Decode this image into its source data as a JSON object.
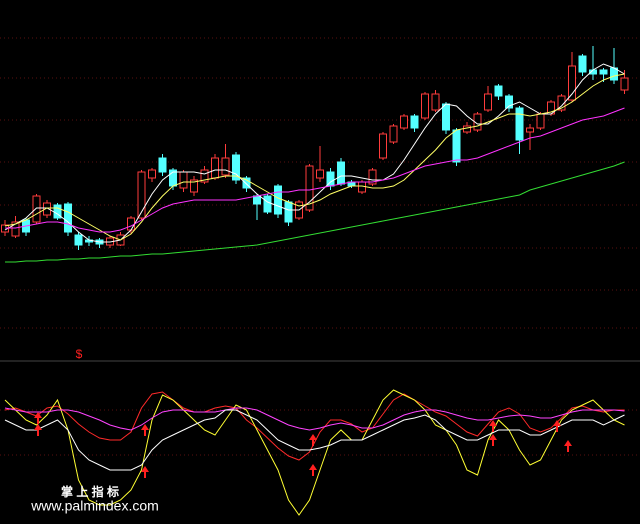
{
  "chart_data": [
    {
      "type": "candlestick",
      "ylim": [
        0,
        300
      ],
      "up_color": "#ff3c3c",
      "down_color": "#54ffff",
      "open": [
        68,
        64,
        80,
        78,
        85,
        95,
        96,
        65,
        60,
        60,
        55,
        55,
        70,
        82,
        122,
        142,
        130,
        112,
        108,
        118,
        122,
        125,
        145,
        122,
        104,
        104,
        114,
        98,
        82,
        90,
        122,
        128,
        138,
        118,
        108,
        116,
        142,
        158,
        172,
        184,
        182,
        190,
        196,
        170,
        168,
        170,
        190,
        214,
        204,
        192,
        168,
        172,
        186,
        190,
        200,
        244,
        230,
        230,
        232,
        210
      ],
      "high": [
        80,
        84,
        82,
        106,
        100,
        97,
        98,
        68,
        64,
        62,
        64,
        68,
        84,
        130,
        132,
        146,
        132,
        130,
        124,
        134,
        146,
        156,
        148,
        124,
        106,
        106,
        116,
        100,
        100,
        136,
        154,
        132,
        142,
        120,
        120,
        132,
        168,
        176,
        186,
        186,
        208,
        210,
        198,
        172,
        178,
        188,
        214,
        216,
        206,
        194,
        176,
        188,
        200,
        206,
        248,
        246,
        254,
        232,
        252,
        230
      ],
      "low": [
        64,
        62,
        64,
        76,
        82,
        80,
        64,
        50,
        54,
        52,
        52,
        54,
        66,
        80,
        118,
        124,
        110,
        108,
        104,
        116,
        120,
        122,
        116,
        108,
        80,
        86,
        82,
        74,
        80,
        88,
        118,
        110,
        114,
        112,
        106,
        114,
        140,
        156,
        170,
        168,
        180,
        188,
        166,
        134,
        166,
        168,
        188,
        200,
        188,
        146,
        150,
        170,
        184,
        188,
        198,
        224,
        220,
        218,
        216,
        206
      ],
      "close": [
        75,
        78,
        68,
        104,
        97,
        82,
        68,
        55,
        58,
        56,
        62,
        65,
        82,
        128,
        130,
        128,
        114,
        128,
        120,
        130,
        142,
        142,
        120,
        112,
        96,
        88,
        86,
        78,
        98,
        134,
        130,
        114,
        116,
        114,
        118,
        130,
        166,
        174,
        184,
        172,
        206,
        206,
        170,
        138,
        174,
        186,
        206,
        204,
        192,
        160,
        172,
        186,
        198,
        204,
        234,
        228,
        226,
        226,
        220,
        222
      ],
      "lines": [
        {
          "color": "#ffffff",
          "values": [
            70,
            76,
            82,
            92,
            92,
            86,
            78,
            68,
            60,
            58,
            58,
            60,
            70,
            88,
            106,
            120,
            128,
            128,
            128,
            126,
            130,
            130,
            126,
            116,
            106,
            98,
            94,
            90,
            90,
            98,
            108,
            118,
            124,
            124,
            122,
            120,
            120,
            126,
            140,
            156,
            172,
            186,
            196,
            194,
            184,
            176,
            176,
            184,
            194,
            198,
            192,
            186,
            186,
            194,
            206,
            220,
            230,
            236,
            232,
            226
          ]
        },
        {
          "color": "#ffff66",
          "values": [
            74,
            76,
            80,
            86,
            92,
            92,
            88,
            82,
            76,
            70,
            64,
            60,
            66,
            78,
            92,
            104,
            114,
            118,
            118,
            120,
            122,
            124,
            124,
            120,
            114,
            108,
            102,
            98,
            94,
            96,
            100,
            106,
            110,
            114,
            114,
            112,
            112,
            114,
            120,
            130,
            140,
            150,
            162,
            170,
            172,
            174,
            178,
            182,
            186,
            186,
            184,
            186,
            188,
            192,
            198,
            206,
            214,
            220,
            224,
            226
          ]
        },
        {
          "color": "#ff33ff",
          "values": [
            72,
            72,
            74,
            76,
            78,
            78,
            76,
            72,
            70,
            68,
            68,
            70,
            74,
            80,
            86,
            92,
            96,
            98,
            100,
            100,
            100,
            100,
            100,
            102,
            104,
            106,
            108,
            108,
            110,
            110,
            112,
            114,
            116,
            118,
            118,
            118,
            120,
            122,
            126,
            130,
            134,
            136,
            138,
            140,
            140,
            142,
            146,
            150,
            154,
            158,
            162,
            164,
            168,
            172,
            176,
            180,
            182,
            184,
            188,
            192
          ]
        },
        {
          "color": "#33dd33",
          "values": [
            38,
            38,
            39,
            39,
            40,
            40,
            41,
            41,
            42,
            42,
            43,
            44,
            44,
            45,
            46,
            46,
            47,
            48,
            49,
            50,
            51,
            52,
            53,
            54,
            55,
            57,
            59,
            61,
            63,
            65,
            67,
            69,
            71,
            73,
            75,
            77,
            79,
            81,
            83,
            85,
            87,
            89,
            91,
            93,
            95,
            97,
            99,
            101,
            103,
            105,
            110,
            113,
            116,
            119,
            122,
            125,
            128,
            131,
            134,
            138
          ]
        }
      ]
    },
    {
      "type": "line",
      "ylim": [
        0,
        164
      ],
      "series": [
        {
          "color": "#ff2a2a",
          "values": [
            114,
            116,
            112,
            108,
            116,
            118,
            110,
            100,
            92,
            86,
            84,
            84,
            92,
            116,
            130,
            132,
            124,
            116,
            112,
            112,
            116,
            118,
            116,
            104,
            96,
            86,
            76,
            68,
            64,
            72,
            92,
            104,
            104,
            100,
            92,
            96,
            110,
            124,
            130,
            124,
            118,
            112,
            108,
            100,
            92,
            88,
            100,
            112,
            116,
            110,
            96,
            92,
            96,
            106,
            116,
            118,
            114,
            112,
            114,
            114
          ]
        },
        {
          "color": "#ffff33",
          "values": [
            124,
            114,
            104,
            99,
            109,
            124,
            94,
            44,
            24,
            19,
            19,
            24,
            34,
            54,
            104,
            129,
            124,
            114,
            104,
            94,
            89,
            104,
            119,
            114,
            94,
            74,
            54,
            24,
            9,
            24,
            54,
            84,
            94,
            84,
            84,
            104,
            124,
            134,
            129,
            124,
            114,
            99,
            94,
            79,
            54,
            49,
            84,
            104,
            94,
            74,
            59,
            64,
            84,
            104,
            114,
            119,
            124,
            114,
            104,
            99
          ]
        },
        {
          "color": "#ff44ff",
          "values": [
            116,
            114,
            112,
            112,
            112,
            114,
            114,
            112,
            108,
            104,
            99,
            96,
            94,
            99,
            106,
            112,
            114,
            114,
            112,
            112,
            112,
            114,
            116,
            116,
            114,
            109,
            104,
            99,
            96,
            94,
            96,
            99,
            101,
            99,
            96,
            96,
            99,
            104,
            109,
            112,
            114,
            114,
            112,
            109,
            106,
            104,
            104,
            106,
            108,
            109,
            108,
            106,
            106,
            109,
            112,
            114,
            114,
            114,
            114,
            113
          ]
        },
        {
          "color": "#ffffff",
          "values": [
            104,
            99,
            94,
            94,
            99,
            104,
            94,
            74,
            64,
            59,
            54,
            54,
            54,
            59,
            74,
            84,
            89,
            94,
            99,
            104,
            106,
            114,
            114,
            109,
            104,
            94,
            84,
            79,
            74,
            74,
            76,
            79,
            84,
            84,
            84,
            89,
            94,
            99,
            104,
            106,
            109,
            104,
            94,
            89,
            84,
            84,
            89,
            94,
            94,
            94,
            89,
            89,
            94,
            99,
            104,
            104,
            104,
            99,
            104,
            109
          ]
        }
      ]
    }
  ],
  "marker": "$",
  "watermark": {
    "title": "掌 上 指 标",
    "url": "www.palmindex.com"
  }
}
